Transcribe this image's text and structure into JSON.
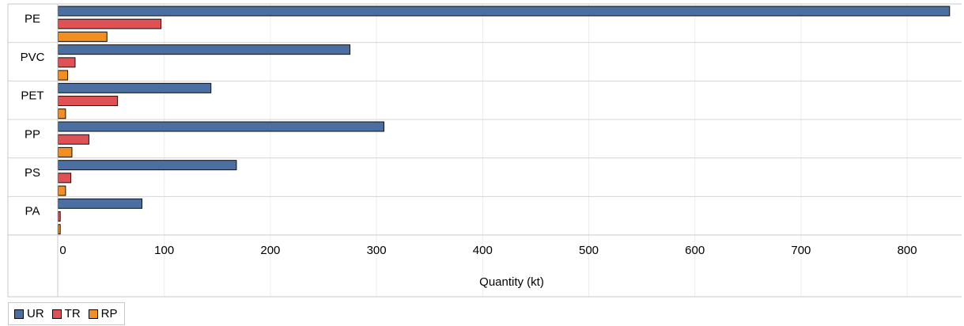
{
  "chart_data": {
    "type": "bar",
    "orientation": "horizontal",
    "title": "",
    "xlabel": "Quantity (kt)",
    "ylabel": "",
    "xlim": [
      0,
      840
    ],
    "xticks": [
      0,
      100,
      200,
      300,
      400,
      500,
      600,
      700,
      800
    ],
    "grid": true,
    "legend": "bottom-left",
    "categories": [
      "PE",
      "PVC",
      "PET",
      "PP",
      "PS",
      "PA"
    ],
    "series": [
      {
        "name": "UR",
        "color": "#4a6fa0",
        "values": [
          840,
          275,
          144,
          307,
          168,
          79
        ]
      },
      {
        "name": "TR",
        "color": "#e05155",
        "values": [
          97,
          16,
          56,
          29,
          12,
          2
        ]
      },
      {
        "name": "RP",
        "color": "#f28f22",
        "values": [
          46,
          9,
          7,
          13,
          7,
          2
        ]
      }
    ]
  }
}
